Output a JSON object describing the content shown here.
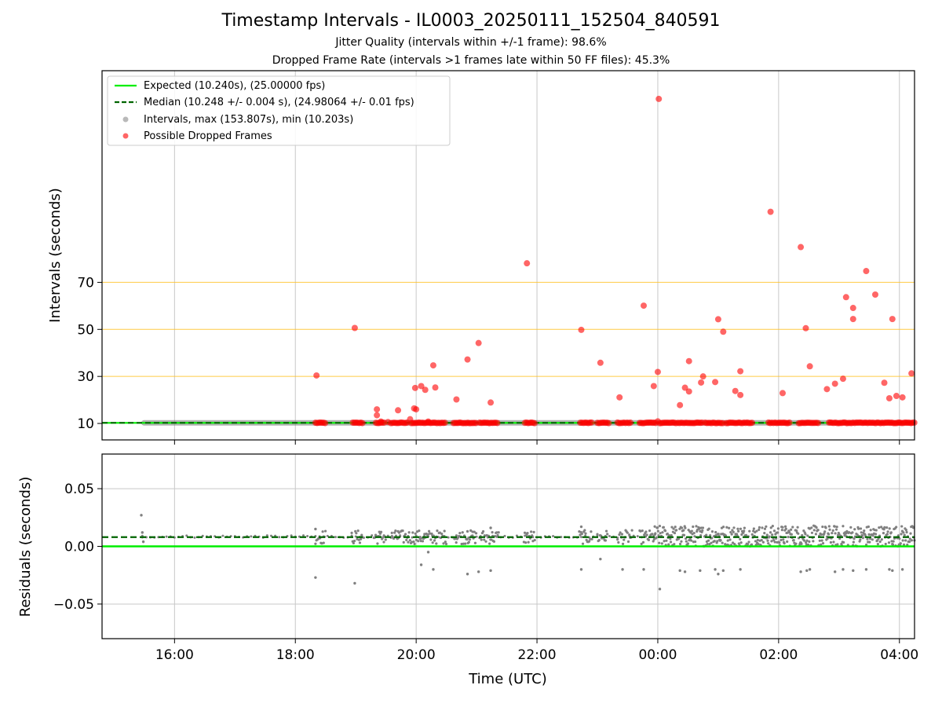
{
  "header": {
    "title": "Timestamp Intervals - IL0003_20250111_152504_840591",
    "subtitle1": "Jitter Quality (intervals within +/-1 frame): 98.6%",
    "subtitle2": "Dropped Frame Rate (intervals >1 frames late within 50 FF files): 45.3%"
  },
  "colors": {
    "expected": "#00ee00",
    "median": "#006400",
    "intervals": "#808080",
    "dropped": "#ff0000",
    "threshold": "#ffc125",
    "grid": "#c8c8c8"
  },
  "chart_data": [
    {
      "type": "scatter",
      "xlabel": "",
      "ylabel": "Intervals (seconds)",
      "xlim": [
        "14:48",
        "04:15"
      ],
      "ylim": [
        3,
        160
      ],
      "yticks": [
        10,
        30,
        50,
        70
      ],
      "xticks": [
        "16:00",
        "18:00",
        "20:00",
        "22:00",
        "00:00",
        "02:00",
        "04:00"
      ],
      "grid": "vertical",
      "threshold_lines": [
        30,
        50,
        70
      ],
      "legend_position": "top-left",
      "legend": [
        "Expected (10.240s), (25.00000 fps)",
        "Median (10.248 +/- 0.004 s), (24.98064 +/- 0.01 fps)",
        "Intervals, max (153.807s), min (10.203s)",
        "Possible Dropped Frames"
      ],
      "expected_value": 10.24,
      "median_value": 10.248,
      "series": [
        {
          "name": "Intervals, max (153.807s), min (10.203s)",
          "x_range": [
            "15:27",
            "04:15"
          ],
          "y": 10.25
        },
        {
          "name": "Possible Dropped Frames",
          "points": [
            [
              "18:21",
              30.4
            ],
            [
              "18:59",
              50.6
            ],
            [
              "19:21",
              16.0
            ],
            [
              "19:21",
              13.5
            ],
            [
              "19:25",
              10.8
            ],
            [
              "19:32",
              10.6
            ],
            [
              "19:42",
              15.6
            ],
            [
              "19:54",
              11.8
            ],
            [
              "19:58",
              16.4
            ],
            [
              "19:59",
              25.1
            ],
            [
              "20:00",
              16.0
            ],
            [
              "20:05",
              25.9
            ],
            [
              "20:09",
              24.3
            ],
            [
              "20:12",
              10.8
            ],
            [
              "20:17",
              34.7
            ],
            [
              "20:19",
              25.3
            ],
            [
              "20:40",
              20.2
            ],
            [
              "20:51",
              37.2
            ],
            [
              "21:02",
              44.2
            ],
            [
              "21:14",
              18.9
            ],
            [
              "21:50",
              78.1
            ],
            [
              "22:44",
              49.8
            ],
            [
              "23:03",
              35.8
            ],
            [
              "23:22",
              21.1
            ],
            [
              "23:46",
              60.1
            ],
            [
              "23:56",
              25.9
            ],
            [
              "00:00",
              31.9
            ],
            [
              "00:00",
              10.9
            ],
            [
              "00:01",
              148.0
            ],
            [
              "00:22",
              17.8
            ],
            [
              "00:27",
              25.2
            ],
            [
              "00:31",
              23.6
            ],
            [
              "00:31",
              36.5
            ],
            [
              "00:43",
              27.4
            ],
            [
              "00:45",
              30.0
            ],
            [
              "00:57",
              27.6
            ],
            [
              "01:00",
              54.3
            ],
            [
              "01:05",
              49.0
            ],
            [
              "01:17",
              23.8
            ],
            [
              "01:22",
              22.1
            ],
            [
              "01:22",
              32.2
            ],
            [
              "01:52",
              100.0
            ],
            [
              "02:04",
              22.9
            ],
            [
              "02:22",
              85.0
            ],
            [
              "02:27",
              50.5
            ],
            [
              "02:31",
              34.3
            ],
            [
              "02:48",
              24.6
            ],
            [
              "02:56",
              26.9
            ],
            [
              "03:04",
              29.0
            ],
            [
              "03:07",
              63.7
            ],
            [
              "03:14",
              59.1
            ],
            [
              "03:14",
              54.4
            ],
            [
              "03:27",
              74.8
            ],
            [
              "03:36",
              64.8
            ],
            [
              "03:45",
              27.3
            ],
            [
              "03:50",
              20.7
            ],
            [
              "03:53",
              54.4
            ],
            [
              "03:57",
              21.7
            ],
            [
              "04:03",
              21.1
            ],
            [
              "04:12",
              31.3
            ]
          ],
          "clusters_at_10": [
            [
              "18:20",
              "18:31"
            ],
            [
              "18:57",
              "19:07"
            ],
            [
              "19:20",
              "19:29"
            ],
            [
              "19:35",
              "19:52"
            ],
            [
              "19:55",
              "20:30"
            ],
            [
              "20:37",
              "21:00"
            ],
            [
              "21:03",
              "21:22"
            ],
            [
              "21:48",
              "21:58"
            ],
            [
              "22:43",
              "22:55"
            ],
            [
              "23:00",
              "23:12"
            ],
            [
              "23:20",
              "23:33"
            ],
            [
              "23:42",
              "23:58"
            ],
            [
              "00:02",
              "00:18"
            ],
            [
              "00:20",
              "00:45"
            ],
            [
              "00:47",
              "01:05"
            ],
            [
              "01:08",
              "01:35"
            ],
            [
              "01:50",
              "02:12"
            ],
            [
              "02:20",
              "02:40"
            ],
            [
              "02:50",
              "04:15"
            ]
          ]
        }
      ]
    },
    {
      "type": "scatter",
      "xlabel": "Time (UTC)",
      "ylabel": "Residuals (seconds)",
      "xlim": [
        "14:48",
        "04:15"
      ],
      "ylim": [
        -0.08,
        0.08
      ],
      "yticks": [
        0.05,
        0.0,
        -0.05
      ],
      "ytick_labels": [
        "0.05",
        "0.00",
        "−0.05"
      ],
      "xticks": [
        "16:00",
        "18:00",
        "20:00",
        "22:00",
        "00:00",
        "02:00",
        "04:00"
      ],
      "grid": "both",
      "expected_residual": 0.0,
      "median_residual": 0.008,
      "series": [
        {
          "name": "",
          "points": [
            [
              "15:27",
              0.027
            ],
            [
              "15:28",
              0.012
            ],
            [
              "15:28",
              0.008
            ],
            [
              "15:29",
              0.004
            ],
            [
              "18:20",
              -0.027
            ],
            [
              "18:59",
              -0.032
            ],
            [
              "20:05",
              -0.016
            ],
            [
              "20:12",
              -0.005
            ],
            [
              "20:17",
              -0.02
            ],
            [
              "20:51",
              -0.024
            ],
            [
              "21:02",
              -0.022
            ],
            [
              "21:14",
              -0.021
            ],
            [
              "22:44",
              -0.02
            ],
            [
              "23:03",
              -0.011
            ],
            [
              "23:25",
              -0.02
            ],
            [
              "23:46",
              -0.02
            ],
            [
              "00:02",
              -0.037
            ],
            [
              "00:22",
              -0.021
            ],
            [
              "00:27",
              -0.022
            ],
            [
              "00:42",
              -0.021
            ],
            [
              "00:57",
              -0.02
            ],
            [
              "01:00",
              -0.024
            ],
            [
              "01:05",
              -0.021
            ],
            [
              "01:22",
              -0.02
            ],
            [
              "02:22",
              -0.022
            ],
            [
              "02:28",
              -0.021
            ],
            [
              "02:31",
              -0.02
            ],
            [
              "02:56",
              -0.022
            ],
            [
              "03:04",
              -0.02
            ],
            [
              "03:14",
              -0.021
            ],
            [
              "03:27",
              -0.02
            ],
            [
              "03:50",
              -0.02
            ],
            [
              "03:53",
              -0.021
            ],
            [
              "04:03",
              -0.02
            ],
            [
              "18:20",
              0.015
            ],
            [
              "19:42",
              0.013
            ],
            [
              "20:51",
              0.013
            ],
            [
              "21:14",
              0.016
            ],
            [
              "22:44",
              0.017
            ],
            [
              "21:50",
              0.011
            ]
          ],
          "dense_band": {
            "x_range": [
              "23:57",
              "04:15"
            ],
            "y_range": [
              0.0,
              0.018
            ]
          },
          "sparse_segments": [
            [
              "18:20",
              "18:30"
            ],
            [
              "18:56",
              "19:07"
            ],
            [
              "19:18",
              "19:30"
            ],
            [
              "19:35",
              "20:30"
            ],
            [
              "20:38",
              "21:00"
            ],
            [
              "21:03",
              "21:22"
            ],
            [
              "21:47",
              "21:58"
            ],
            [
              "22:42",
              "22:55"
            ],
            [
              "23:00",
              "23:10"
            ],
            [
              "23:20",
              "23:35"
            ],
            [
              "23:42",
              "23:58"
            ]
          ]
        }
      ]
    }
  ]
}
